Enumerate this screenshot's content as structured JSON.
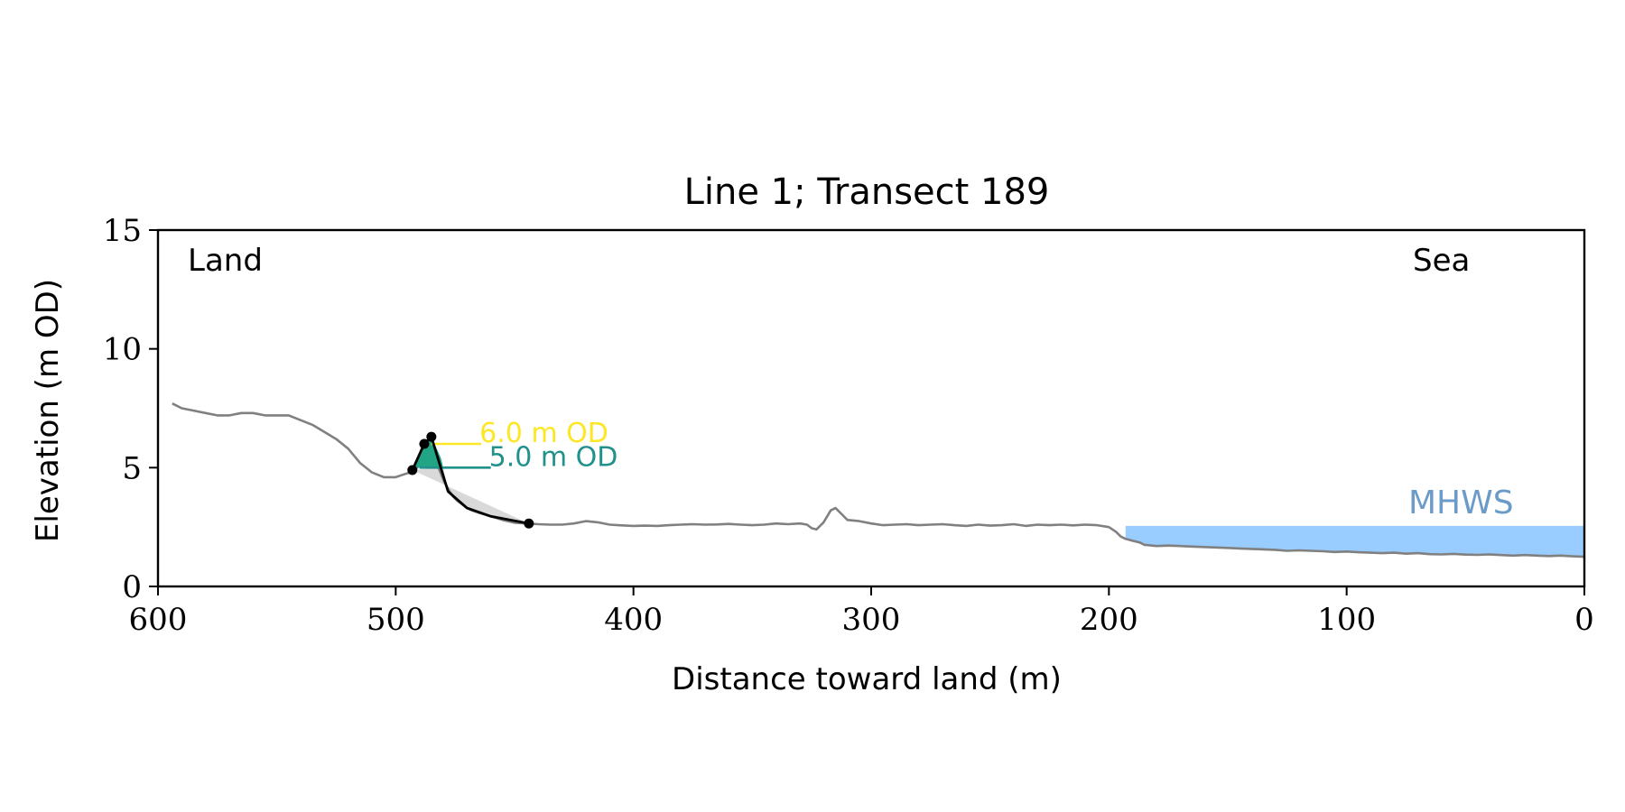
{
  "chart_data": {
    "type": "line",
    "title": "Line 1; Transect 189",
    "xlabel": "Distance toward land (m)",
    "ylabel": "Elevation (m OD)",
    "xlim": [
      600,
      0
    ],
    "ylim": [
      0,
      15
    ],
    "x_ticks": [
      600,
      500,
      400,
      300,
      200,
      100,
      0
    ],
    "y_ticks": [
      0,
      5,
      10,
      15
    ],
    "grid": false,
    "annotations": {
      "land": "Land",
      "sea": "Sea",
      "mhws": "MHWS",
      "contour_upper": "6.0 m OD",
      "contour_lower": "5.0 m OD"
    },
    "colors": {
      "profile": "#808080",
      "dune": "#000000",
      "sea_fill": "#99ccff",
      "mhws_text": "#6b9bc8",
      "contour_upper": "#fde725",
      "contour_lower": "#21918c",
      "dune_volume": "#21a585",
      "toe_shadow": "#d9d9d9"
    },
    "mhws_level": 2.55,
    "mhws_x_start": 193,
    "contour_upper_level": 6.0,
    "contour_lower_level": 5.0,
    "profile": {
      "x": [
        594,
        590,
        585,
        580,
        575,
        570,
        565,
        560,
        555,
        550,
        545,
        540,
        535,
        530,
        525,
        520,
        515,
        510,
        505,
        500,
        497,
        494,
        492,
        490,
        488,
        486,
        484,
        482,
        480,
        478,
        476,
        474,
        472,
        470,
        468,
        465,
        460,
        455,
        450,
        445,
        440,
        435,
        430,
        425,
        420,
        415,
        410,
        405,
        400,
        395,
        390,
        385,
        380,
        375,
        370,
        365,
        360,
        355,
        350,
        345,
        340,
        335,
        330,
        327,
        325,
        323,
        320,
        317,
        315,
        312,
        310,
        305,
        300,
        295,
        290,
        285,
        280,
        275,
        270,
        265,
        260,
        255,
        250,
        245,
        240,
        235,
        230,
        225,
        220,
        215,
        210,
        205,
        200,
        197,
        195,
        193,
        190,
        187,
        185,
        180,
        175,
        170,
        165,
        160,
        155,
        150,
        145,
        140,
        135,
        130,
        125,
        120,
        115,
        110,
        105,
        100,
        95,
        90,
        85,
        80,
        75,
        70,
        65,
        60,
        55,
        50,
        45,
        40,
        35,
        30,
        25,
        20,
        15,
        10,
        5,
        0
      ],
      "y": [
        7.7,
        7.5,
        7.4,
        7.3,
        7.2,
        7.2,
        7.3,
        7.3,
        7.2,
        7.2,
        7.2,
        7.0,
        6.8,
        6.5,
        6.2,
        5.8,
        5.2,
        4.8,
        4.6,
        4.6,
        4.7,
        4.8,
        4.9,
        5.1,
        5.4,
        5.8,
        5.6,
        5.0,
        4.5,
        4.1,
        3.8,
        3.6,
        3.45,
        3.3,
        3.2,
        3.1,
        2.95,
        2.8,
        2.68,
        2.65,
        2.62,
        2.6,
        2.6,
        2.65,
        2.75,
        2.7,
        2.6,
        2.57,
        2.55,
        2.56,
        2.55,
        2.58,
        2.6,
        2.62,
        2.6,
        2.61,
        2.63,
        2.6,
        2.58,
        2.6,
        2.65,
        2.62,
        2.65,
        2.6,
        2.45,
        2.4,
        2.7,
        3.2,
        3.3,
        3.0,
        2.8,
        2.75,
        2.65,
        2.58,
        2.6,
        2.62,
        2.58,
        2.6,
        2.62,
        2.58,
        2.55,
        2.6,
        2.56,
        2.58,
        2.62,
        2.55,
        2.6,
        2.58,
        2.6,
        2.57,
        2.6,
        2.58,
        2.5,
        2.3,
        2.1,
        2.0,
        1.92,
        1.85,
        1.75,
        1.7,
        1.72,
        1.7,
        1.68,
        1.66,
        1.64,
        1.62,
        1.6,
        1.58,
        1.56,
        1.54,
        1.5,
        1.52,
        1.5,
        1.48,
        1.45,
        1.47,
        1.44,
        1.42,
        1.4,
        1.42,
        1.38,
        1.4,
        1.36,
        1.35,
        1.37,
        1.34,
        1.33,
        1.35,
        1.32,
        1.3,
        1.32,
        1.3,
        1.28,
        1.3,
        1.27,
        1.25
      ]
    },
    "dune": {
      "x": [
        493,
        488,
        485,
        478,
        470,
        460,
        444
      ],
      "y": [
        4.9,
        6.0,
        6.3,
        4.0,
        3.3,
        2.95,
        2.65
      ],
      "markers": [
        {
          "x": 493,
          "y": 4.9
        },
        {
          "x": 488,
          "y": 6.0
        },
        {
          "x": 485,
          "y": 6.3
        },
        {
          "x": 444,
          "y": 2.65
        }
      ]
    },
    "contour_upper_segment": [
      485,
      464
    ],
    "contour_lower_segment": [
      490,
      460
    ],
    "dune_volume_polygon": {
      "x": [
        493,
        488,
        485,
        481,
        480,
        493
      ],
      "y": [
        4.9,
        6.0,
        6.3,
        5.4,
        5.0,
        5.0
      ]
    },
    "toe_shadow_polygon": {
      "x": [
        493,
        480,
        478,
        470,
        460,
        444
      ],
      "y": [
        4.9,
        5.0,
        4.0,
        3.3,
        2.95,
        2.65
      ]
    }
  }
}
